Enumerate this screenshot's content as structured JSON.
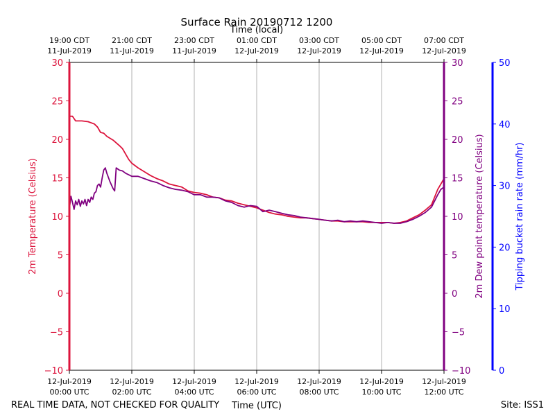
{
  "chart_data": {
    "type": "line",
    "title": "Surface Rain 20190712 1200",
    "top_axis_label": "Time (local)",
    "xlabel": "Time (UTC)",
    "ylabel_left": "2m Temperature (Celsius)",
    "ylabel_right": "2m Dew point temperature (Celsius)",
    "ylabel_far_right": "Tipping bucket rain rate (mm/hr)",
    "xlim_hours": [
      0,
      12
    ],
    "ylim_temp": [
      -10,
      30
    ],
    "ylim_rain": [
      0,
      50
    ],
    "temp_ticks": [
      "30",
      "25",
      "20",
      "15",
      "10",
      "5",
      "0",
      "−5",
      "−10"
    ],
    "rain_ticks": [
      "50",
      "40",
      "30",
      "20",
      "10",
      "0"
    ],
    "bottom_ticks": [
      {
        "line1": "12-Jul-2019",
        "line2": "00:00 UTC"
      },
      {
        "line1": "12-Jul-2019",
        "line2": "02:00 UTC"
      },
      {
        "line1": "12-Jul-2019",
        "line2": "04:00 UTC"
      },
      {
        "line1": "12-Jul-2019",
        "line2": "06:00 UTC"
      },
      {
        "line1": "12-Jul-2019",
        "line2": "08:00 UTC"
      },
      {
        "line1": "12-Jul-2019",
        "line2": "10:00 UTC"
      },
      {
        "line1": "12-Jul-2019",
        "line2": "12:00 UTC"
      }
    ],
    "top_ticks": [
      {
        "line1": "19:00 CDT",
        "line2": "11-Jul-2019"
      },
      {
        "line1": "21:00 CDT",
        "line2": "11-Jul-2019"
      },
      {
        "line1": "23:00 CDT",
        "line2": "11-Jul-2019"
      },
      {
        "line1": "01:00 CDT",
        "line2": "12-Jul-2019"
      },
      {
        "line1": "03:00 CDT",
        "line2": "12-Jul-2019"
      },
      {
        "line1": "05:00 CDT",
        "line2": "12-Jul-2019"
      },
      {
        "line1": "07:00 CDT",
        "line2": "12-Jul-2019"
      }
    ],
    "series": [
      {
        "name": "2m Temperature",
        "color": "#dc143c",
        "points": [
          [
            0.0,
            23.0
          ],
          [
            0.1,
            23.0
          ],
          [
            0.2,
            22.4
          ],
          [
            0.4,
            22.4
          ],
          [
            0.6,
            22.3
          ],
          [
            0.8,
            22.0
          ],
          [
            0.9,
            21.6
          ],
          [
            1.0,
            20.9
          ],
          [
            1.1,
            20.8
          ],
          [
            1.2,
            20.4
          ],
          [
            1.4,
            19.9
          ],
          [
            1.6,
            19.2
          ],
          [
            1.7,
            18.8
          ],
          [
            1.8,
            18.1
          ],
          [
            1.9,
            17.4
          ],
          [
            2.0,
            16.9
          ],
          [
            2.2,
            16.3
          ],
          [
            2.4,
            15.8
          ],
          [
            2.6,
            15.3
          ],
          [
            2.8,
            14.9
          ],
          [
            3.0,
            14.6
          ],
          [
            3.2,
            14.2
          ],
          [
            3.4,
            14.0
          ],
          [
            3.6,
            13.8
          ],
          [
            3.8,
            13.3
          ],
          [
            4.0,
            13.1
          ],
          [
            4.2,
            13.0
          ],
          [
            4.4,
            12.8
          ],
          [
            4.6,
            12.5
          ],
          [
            4.8,
            12.4
          ],
          [
            5.0,
            12.1
          ],
          [
            5.2,
            12.0
          ],
          [
            5.4,
            11.7
          ],
          [
            5.6,
            11.5
          ],
          [
            5.8,
            11.3
          ],
          [
            6.0,
            11.1
          ],
          [
            6.2,
            10.8
          ],
          [
            6.4,
            10.5
          ],
          [
            6.6,
            10.3
          ],
          [
            6.8,
            10.2
          ],
          [
            7.0,
            10.0
          ],
          [
            7.2,
            9.9
          ],
          [
            7.4,
            9.8
          ],
          [
            7.6,
            9.8
          ],
          [
            7.8,
            9.7
          ],
          [
            8.0,
            9.6
          ],
          [
            8.2,
            9.5
          ],
          [
            8.4,
            9.4
          ],
          [
            8.6,
            9.4
          ],
          [
            8.8,
            9.3
          ],
          [
            9.0,
            9.3
          ],
          [
            9.2,
            9.3
          ],
          [
            9.4,
            9.3
          ],
          [
            9.6,
            9.2
          ],
          [
            9.8,
            9.2
          ],
          [
            10.0,
            9.2
          ],
          [
            10.2,
            9.2
          ],
          [
            10.4,
            9.1
          ],
          [
            10.6,
            9.2
          ],
          [
            10.8,
            9.4
          ],
          [
            11.0,
            9.8
          ],
          [
            11.2,
            10.2
          ],
          [
            11.4,
            10.8
          ],
          [
            11.6,
            11.5
          ],
          [
            11.7,
            12.5
          ],
          [
            11.8,
            13.5
          ],
          [
            11.9,
            14.2
          ],
          [
            12.0,
            14.9
          ]
        ]
      },
      {
        "name": "2m Dew point temperature",
        "color": "#800080",
        "points": [
          [
            0.0,
            11.0
          ],
          [
            0.05,
            12.6
          ],
          [
            0.1,
            11.8
          ],
          [
            0.15,
            10.9
          ],
          [
            0.2,
            12.0
          ],
          [
            0.25,
            11.5
          ],
          [
            0.3,
            12.2
          ],
          [
            0.35,
            11.3
          ],
          [
            0.4,
            12.0
          ],
          [
            0.45,
            11.6
          ],
          [
            0.5,
            12.2
          ],
          [
            0.55,
            11.4
          ],
          [
            0.6,
            12.2
          ],
          [
            0.65,
            11.8
          ],
          [
            0.7,
            12.5
          ],
          [
            0.75,
            12.2
          ],
          [
            0.8,
            13.0
          ],
          [
            0.85,
            13.2
          ],
          [
            0.9,
            14.0
          ],
          [
            0.95,
            14.2
          ],
          [
            1.0,
            13.8
          ],
          [
            1.05,
            15.0
          ],
          [
            1.1,
            16.0
          ],
          [
            1.15,
            16.3
          ],
          [
            1.2,
            15.6
          ],
          [
            1.3,
            14.5
          ],
          [
            1.4,
            13.6
          ],
          [
            1.45,
            13.3
          ],
          [
            1.5,
            16.3
          ],
          [
            1.6,
            16.0
          ],
          [
            1.7,
            15.9
          ],
          [
            1.8,
            15.6
          ],
          [
            1.9,
            15.4
          ],
          [
            2.0,
            15.2
          ],
          [
            2.2,
            15.2
          ],
          [
            2.4,
            14.9
          ],
          [
            2.6,
            14.6
          ],
          [
            2.8,
            14.4
          ],
          [
            3.0,
            14.0
          ],
          [
            3.2,
            13.7
          ],
          [
            3.4,
            13.5
          ],
          [
            3.6,
            13.4
          ],
          [
            3.8,
            13.2
          ],
          [
            4.0,
            12.8
          ],
          [
            4.2,
            12.8
          ],
          [
            4.4,
            12.5
          ],
          [
            4.6,
            12.5
          ],
          [
            4.8,
            12.4
          ],
          [
            5.0,
            12.0
          ],
          [
            5.2,
            11.8
          ],
          [
            5.4,
            11.4
          ],
          [
            5.6,
            11.2
          ],
          [
            5.8,
            11.4
          ],
          [
            6.0,
            11.3
          ],
          [
            6.2,
            10.6
          ],
          [
            6.4,
            10.8
          ],
          [
            6.6,
            10.6
          ],
          [
            6.8,
            10.4
          ],
          [
            7.0,
            10.2
          ],
          [
            7.2,
            10.1
          ],
          [
            7.4,
            9.9
          ],
          [
            7.6,
            9.8
          ],
          [
            7.8,
            9.7
          ],
          [
            8.0,
            9.6
          ],
          [
            8.2,
            9.5
          ],
          [
            8.4,
            9.4
          ],
          [
            8.6,
            9.5
          ],
          [
            8.8,
            9.3
          ],
          [
            9.0,
            9.4
          ],
          [
            9.2,
            9.3
          ],
          [
            9.4,
            9.4
          ],
          [
            9.6,
            9.3
          ],
          [
            9.8,
            9.2
          ],
          [
            10.0,
            9.1
          ],
          [
            10.2,
            9.2
          ],
          [
            10.4,
            9.1
          ],
          [
            10.6,
            9.1
          ],
          [
            10.8,
            9.3
          ],
          [
            11.0,
            9.6
          ],
          [
            11.2,
            10.0
          ],
          [
            11.4,
            10.5
          ],
          [
            11.6,
            11.2
          ],
          [
            11.7,
            12.0
          ],
          [
            11.8,
            12.8
          ],
          [
            11.9,
            13.5
          ],
          [
            12.0,
            13.8
          ]
        ]
      },
      {
        "name": "Tipping bucket rain rate",
        "color": "#0000ff",
        "points": []
      }
    ],
    "grid": "vertical"
  },
  "footer": {
    "left_note": "REAL TIME DATA, NOT CHECKED FOR QUALITY",
    "site": "Site: ISS1"
  },
  "colors": {
    "temp_axis": "#dc143c",
    "dew_axis": "#800080",
    "rain_axis": "#0000ff",
    "grid": "#b0b0b0"
  }
}
